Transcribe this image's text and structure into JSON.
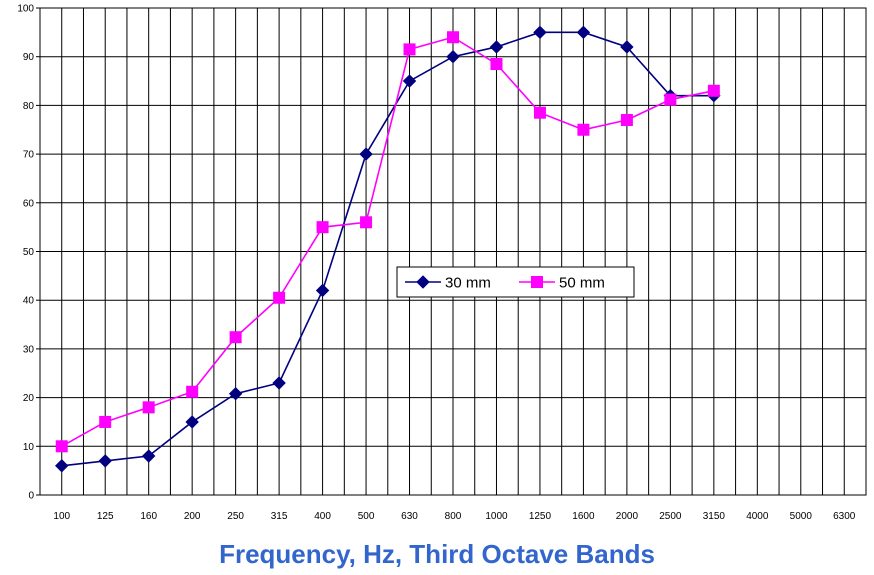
{
  "chart_data": {
    "type": "line",
    "title": "",
    "xlabel": "Frequency, Hz, Third Octave Bands",
    "ylabel": "",
    "categories": [
      "100",
      "125",
      "160",
      "200",
      "250",
      "315",
      "400",
      "500",
      "630",
      "800",
      "1000",
      "1250",
      "1600",
      "2000",
      "2500",
      "3150",
      "4000",
      "5000",
      "6300"
    ],
    "ylim": [
      0,
      100
    ],
    "yticks": [
      0,
      10,
      20,
      30,
      40,
      50,
      60,
      70,
      80,
      90,
      100
    ],
    "grid": true,
    "legend": "center-right",
    "series": [
      {
        "name": "30 mm",
        "color": "#000080",
        "marker": "diamond",
        "values": [
          6,
          7,
          8,
          15,
          20.8,
          23,
          42,
          70,
          85,
          90,
          92,
          95,
          95,
          92,
          82,
          82,
          null,
          null,
          null
        ]
      },
      {
        "name": "50 mm",
        "color": "#ff00ff",
        "marker": "square",
        "values": [
          10,
          15,
          18,
          21.2,
          32.4,
          40.5,
          55,
          56,
          91.5,
          94,
          88.5,
          78.5,
          75,
          77,
          81.2,
          83,
          null,
          null,
          null
        ]
      }
    ]
  }
}
